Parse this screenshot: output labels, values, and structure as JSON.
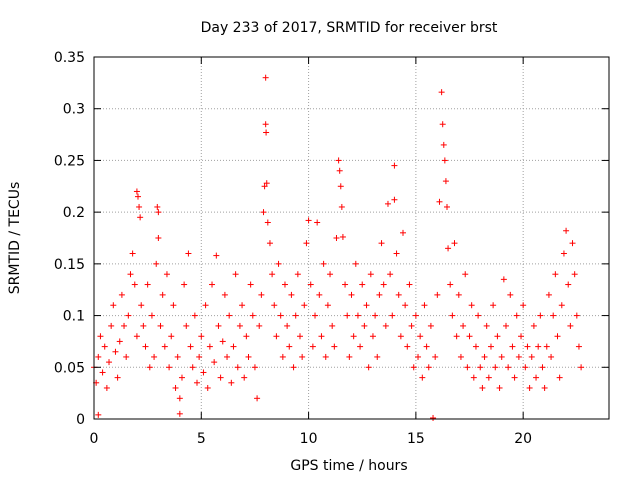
{
  "chart_data": {
    "type": "scatter",
    "title": "Day 233 of 2017, SRMTID for receiver brst",
    "xlabel": "GPS time / hours",
    "ylabel": "SRMTID / TECUs",
    "xlim": [
      0,
      24
    ],
    "ylim": [
      0,
      0.35
    ],
    "grid": true,
    "marker": "+",
    "marker_color": "#ff0000",
    "xticks": [
      {
        "value": 0,
        "label": "0"
      },
      {
        "value": 5,
        "label": "5"
      },
      {
        "value": 10,
        "label": "10"
      },
      {
        "value": 15,
        "label": "15"
      },
      {
        "value": 20,
        "label": "20"
      }
    ],
    "yticks": [
      {
        "value": 0,
        "label": "0"
      },
      {
        "value": 0.05,
        "label": "0.05"
      },
      {
        "value": 0.1,
        "label": "0.1"
      },
      {
        "value": 0.15,
        "label": "0.15"
      },
      {
        "value": 0.2,
        "label": "0.2"
      },
      {
        "value": 0.25,
        "label": "0.25"
      },
      {
        "value": 0.3,
        "label": "0.3"
      },
      {
        "value": 0.35,
        "label": "0.35"
      }
    ],
    "series": [
      {
        "name": "SRMTID",
        "points": [
          [
            0.0,
            0.05
          ],
          [
            0.1,
            0.035
          ],
          [
            0.2,
            0.06
          ],
          [
            0.2,
            0.004
          ],
          [
            0.3,
            0.08
          ],
          [
            0.4,
            0.045
          ],
          [
            0.5,
            0.07
          ],
          [
            0.6,
            0.03
          ],
          [
            0.7,
            0.055
          ],
          [
            0.8,
            0.09
          ],
          [
            0.9,
            0.11
          ],
          [
            1.0,
            0.065
          ],
          [
            1.1,
            0.04
          ],
          [
            1.2,
            0.075
          ],
          [
            1.3,
            0.12
          ],
          [
            1.4,
            0.09
          ],
          [
            1.5,
            0.06
          ],
          [
            1.6,
            0.1
          ],
          [
            1.7,
            0.14
          ],
          [
            1.8,
            0.16
          ],
          [
            1.9,
            0.13
          ],
          [
            2.0,
            0.08
          ],
          [
            2.0,
            0.22
          ],
          [
            2.05,
            0.215
          ],
          [
            2.1,
            0.205
          ],
          [
            2.15,
            0.195
          ],
          [
            2.2,
            0.11
          ],
          [
            2.3,
            0.09
          ],
          [
            2.4,
            0.07
          ],
          [
            2.5,
            0.13
          ],
          [
            2.6,
            0.05
          ],
          [
            2.7,
            0.1
          ],
          [
            2.8,
            0.06
          ],
          [
            2.9,
            0.15
          ],
          [
            2.95,
            0.205
          ],
          [
            3.0,
            0.2
          ],
          [
            3.0,
            0.175
          ],
          [
            3.1,
            0.09
          ],
          [
            3.2,
            0.12
          ],
          [
            3.3,
            0.07
          ],
          [
            3.4,
            0.14
          ],
          [
            3.5,
            0.05
          ],
          [
            3.6,
            0.08
          ],
          [
            3.7,
            0.11
          ],
          [
            3.8,
            0.03
          ],
          [
            3.9,
            0.06
          ],
          [
            4.0,
            0.02
          ],
          [
            4.0,
            0.005
          ],
          [
            4.1,
            0.04
          ],
          [
            4.2,
            0.13
          ],
          [
            4.3,
            0.09
          ],
          [
            4.4,
            0.16
          ],
          [
            4.5,
            0.07
          ],
          [
            4.6,
            0.05
          ],
          [
            4.7,
            0.1
          ],
          [
            4.8,
            0.035
          ],
          [
            4.9,
            0.06
          ],
          [
            5.0,
            0.08
          ],
          [
            5.1,
            0.045
          ],
          [
            5.2,
            0.11
          ],
          [
            5.3,
            0.03
          ],
          [
            5.4,
            0.07
          ],
          [
            5.5,
            0.13
          ],
          [
            5.6,
            0.055
          ],
          [
            5.7,
            0.158
          ],
          [
            5.8,
            0.09
          ],
          [
            5.9,
            0.04
          ],
          [
            6.0,
            0.075
          ],
          [
            6.1,
            0.12
          ],
          [
            6.2,
            0.06
          ],
          [
            6.3,
            0.1
          ],
          [
            6.4,
            0.035
          ],
          [
            6.5,
            0.07
          ],
          [
            6.6,
            0.14
          ],
          [
            6.7,
            0.05
          ],
          [
            6.8,
            0.09
          ],
          [
            6.9,
            0.11
          ],
          [
            7.0,
            0.04
          ],
          [
            7.1,
            0.08
          ],
          [
            7.2,
            0.06
          ],
          [
            7.3,
            0.13
          ],
          [
            7.4,
            0.1
          ],
          [
            7.5,
            0.05
          ],
          [
            7.6,
            0.02
          ],
          [
            7.7,
            0.09
          ],
          [
            7.8,
            0.12
          ],
          [
            7.9,
            0.2
          ],
          [
            7.95,
            0.225
          ],
          [
            8.0,
            0.33
          ],
          [
            8.0,
            0.285
          ],
          [
            8.02,
            0.277
          ],
          [
            8.05,
            0.228
          ],
          [
            8.1,
            0.19
          ],
          [
            8.2,
            0.17
          ],
          [
            8.3,
            0.14
          ],
          [
            8.4,
            0.11
          ],
          [
            8.5,
            0.08
          ],
          [
            8.6,
            0.15
          ],
          [
            8.7,
            0.1
          ],
          [
            8.8,
            0.06
          ],
          [
            8.9,
            0.13
          ],
          [
            9.0,
            0.09
          ],
          [
            9.1,
            0.07
          ],
          [
            9.2,
            0.12
          ],
          [
            9.3,
            0.05
          ],
          [
            9.4,
            0.1
          ],
          [
            9.5,
            0.14
          ],
          [
            9.6,
            0.08
          ],
          [
            9.7,
            0.06
          ],
          [
            9.8,
            0.11
          ],
          [
            9.9,
            0.17
          ],
          [
            10.0,
            0.192
          ],
          [
            10.1,
            0.13
          ],
          [
            10.2,
            0.07
          ],
          [
            10.3,
            0.1
          ],
          [
            10.4,
            0.19
          ],
          [
            10.5,
            0.12
          ],
          [
            10.6,
            0.08
          ],
          [
            10.7,
            0.15
          ],
          [
            10.8,
            0.06
          ],
          [
            10.9,
            0.11
          ],
          [
            11.0,
            0.14
          ],
          [
            11.1,
            0.09
          ],
          [
            11.2,
            0.07
          ],
          [
            11.3,
            0.175
          ],
          [
            11.4,
            0.25
          ],
          [
            11.45,
            0.24
          ],
          [
            11.5,
            0.225
          ],
          [
            11.55,
            0.205
          ],
          [
            11.6,
            0.176
          ],
          [
            11.7,
            0.13
          ],
          [
            11.8,
            0.1
          ],
          [
            11.9,
            0.06
          ],
          [
            12.0,
            0.12
          ],
          [
            12.1,
            0.08
          ],
          [
            12.2,
            0.15
          ],
          [
            12.3,
            0.1
          ],
          [
            12.4,
            0.07
          ],
          [
            12.5,
            0.13
          ],
          [
            12.6,
            0.09
          ],
          [
            12.7,
            0.11
          ],
          [
            12.8,
            0.05
          ],
          [
            12.9,
            0.14
          ],
          [
            13.0,
            0.08
          ],
          [
            13.1,
            0.1
          ],
          [
            13.2,
            0.06
          ],
          [
            13.3,
            0.12
          ],
          [
            13.4,
            0.17
          ],
          [
            13.5,
            0.13
          ],
          [
            13.6,
            0.09
          ],
          [
            13.7,
            0.208
          ],
          [
            13.8,
            0.14
          ],
          [
            13.9,
            0.1
          ],
          [
            14.0,
            0.245
          ],
          [
            14.0,
            0.212
          ],
          [
            14.1,
            0.16
          ],
          [
            14.2,
            0.12
          ],
          [
            14.3,
            0.08
          ],
          [
            14.4,
            0.18
          ],
          [
            14.5,
            0.11
          ],
          [
            14.6,
            0.07
          ],
          [
            14.7,
            0.13
          ],
          [
            14.8,
            0.09
          ],
          [
            14.9,
            0.05
          ],
          [
            15.0,
            0.1
          ],
          [
            15.1,
            0.06
          ],
          [
            15.2,
            0.08
          ],
          [
            15.3,
            0.04
          ],
          [
            15.4,
            0.11
          ],
          [
            15.5,
            0.07
          ],
          [
            15.6,
            0.05
          ],
          [
            15.7,
            0.09
          ],
          [
            15.8,
            0.001
          ],
          [
            15.9,
            0.06
          ],
          [
            16.0,
            0.12
          ],
          [
            16.1,
            0.21
          ],
          [
            16.2,
            0.316
          ],
          [
            16.25,
            0.285
          ],
          [
            16.3,
            0.265
          ],
          [
            16.35,
            0.25
          ],
          [
            16.4,
            0.23
          ],
          [
            16.45,
            0.205
          ],
          [
            16.5,
            0.165
          ],
          [
            16.6,
            0.13
          ],
          [
            16.7,
            0.1
          ],
          [
            16.8,
            0.17
          ],
          [
            16.9,
            0.08
          ],
          [
            17.0,
            0.12
          ],
          [
            17.1,
            0.06
          ],
          [
            17.2,
            0.09
          ],
          [
            17.3,
            0.14
          ],
          [
            17.4,
            0.05
          ],
          [
            17.5,
            0.08
          ],
          [
            17.6,
            0.11
          ],
          [
            17.7,
            0.04
          ],
          [
            17.8,
            0.07
          ],
          [
            17.9,
            0.1
          ],
          [
            18.0,
            0.05
          ],
          [
            18.1,
            0.03
          ],
          [
            18.2,
            0.06
          ],
          [
            18.3,
            0.09
          ],
          [
            18.4,
            0.04
          ],
          [
            18.5,
            0.07
          ],
          [
            18.6,
            0.11
          ],
          [
            18.7,
            0.05
          ],
          [
            18.8,
            0.08
          ],
          [
            18.9,
            0.03
          ],
          [
            19.0,
            0.06
          ],
          [
            19.1,
            0.135
          ],
          [
            19.2,
            0.09
          ],
          [
            19.3,
            0.05
          ],
          [
            19.4,
            0.12
          ],
          [
            19.5,
            0.07
          ],
          [
            19.6,
            0.04
          ],
          [
            19.7,
            0.1
          ],
          [
            19.8,
            0.06
          ],
          [
            19.9,
            0.08
          ],
          [
            20.0,
            0.11
          ],
          [
            20.1,
            0.05
          ],
          [
            20.2,
            0.07
          ],
          [
            20.3,
            0.03
          ],
          [
            20.4,
            0.06
          ],
          [
            20.5,
            0.09
          ],
          [
            20.6,
            0.04
          ],
          [
            20.7,
            0.07
          ],
          [
            20.8,
            0.1
          ],
          [
            20.9,
            0.05
          ],
          [
            21.0,
            0.03
          ],
          [
            21.1,
            0.07
          ],
          [
            21.2,
            0.12
          ],
          [
            21.3,
            0.06
          ],
          [
            21.4,
            0.1
          ],
          [
            21.5,
            0.14
          ],
          [
            21.6,
            0.08
          ],
          [
            21.7,
            0.04
          ],
          [
            21.8,
            0.11
          ],
          [
            21.9,
            0.16
          ],
          [
            22.0,
            0.182
          ],
          [
            22.1,
            0.13
          ],
          [
            22.2,
            0.09
          ],
          [
            22.3,
            0.17
          ],
          [
            22.4,
            0.14
          ],
          [
            22.5,
            0.1
          ],
          [
            22.6,
            0.07
          ],
          [
            22.7,
            0.05
          ]
        ]
      }
    ]
  }
}
